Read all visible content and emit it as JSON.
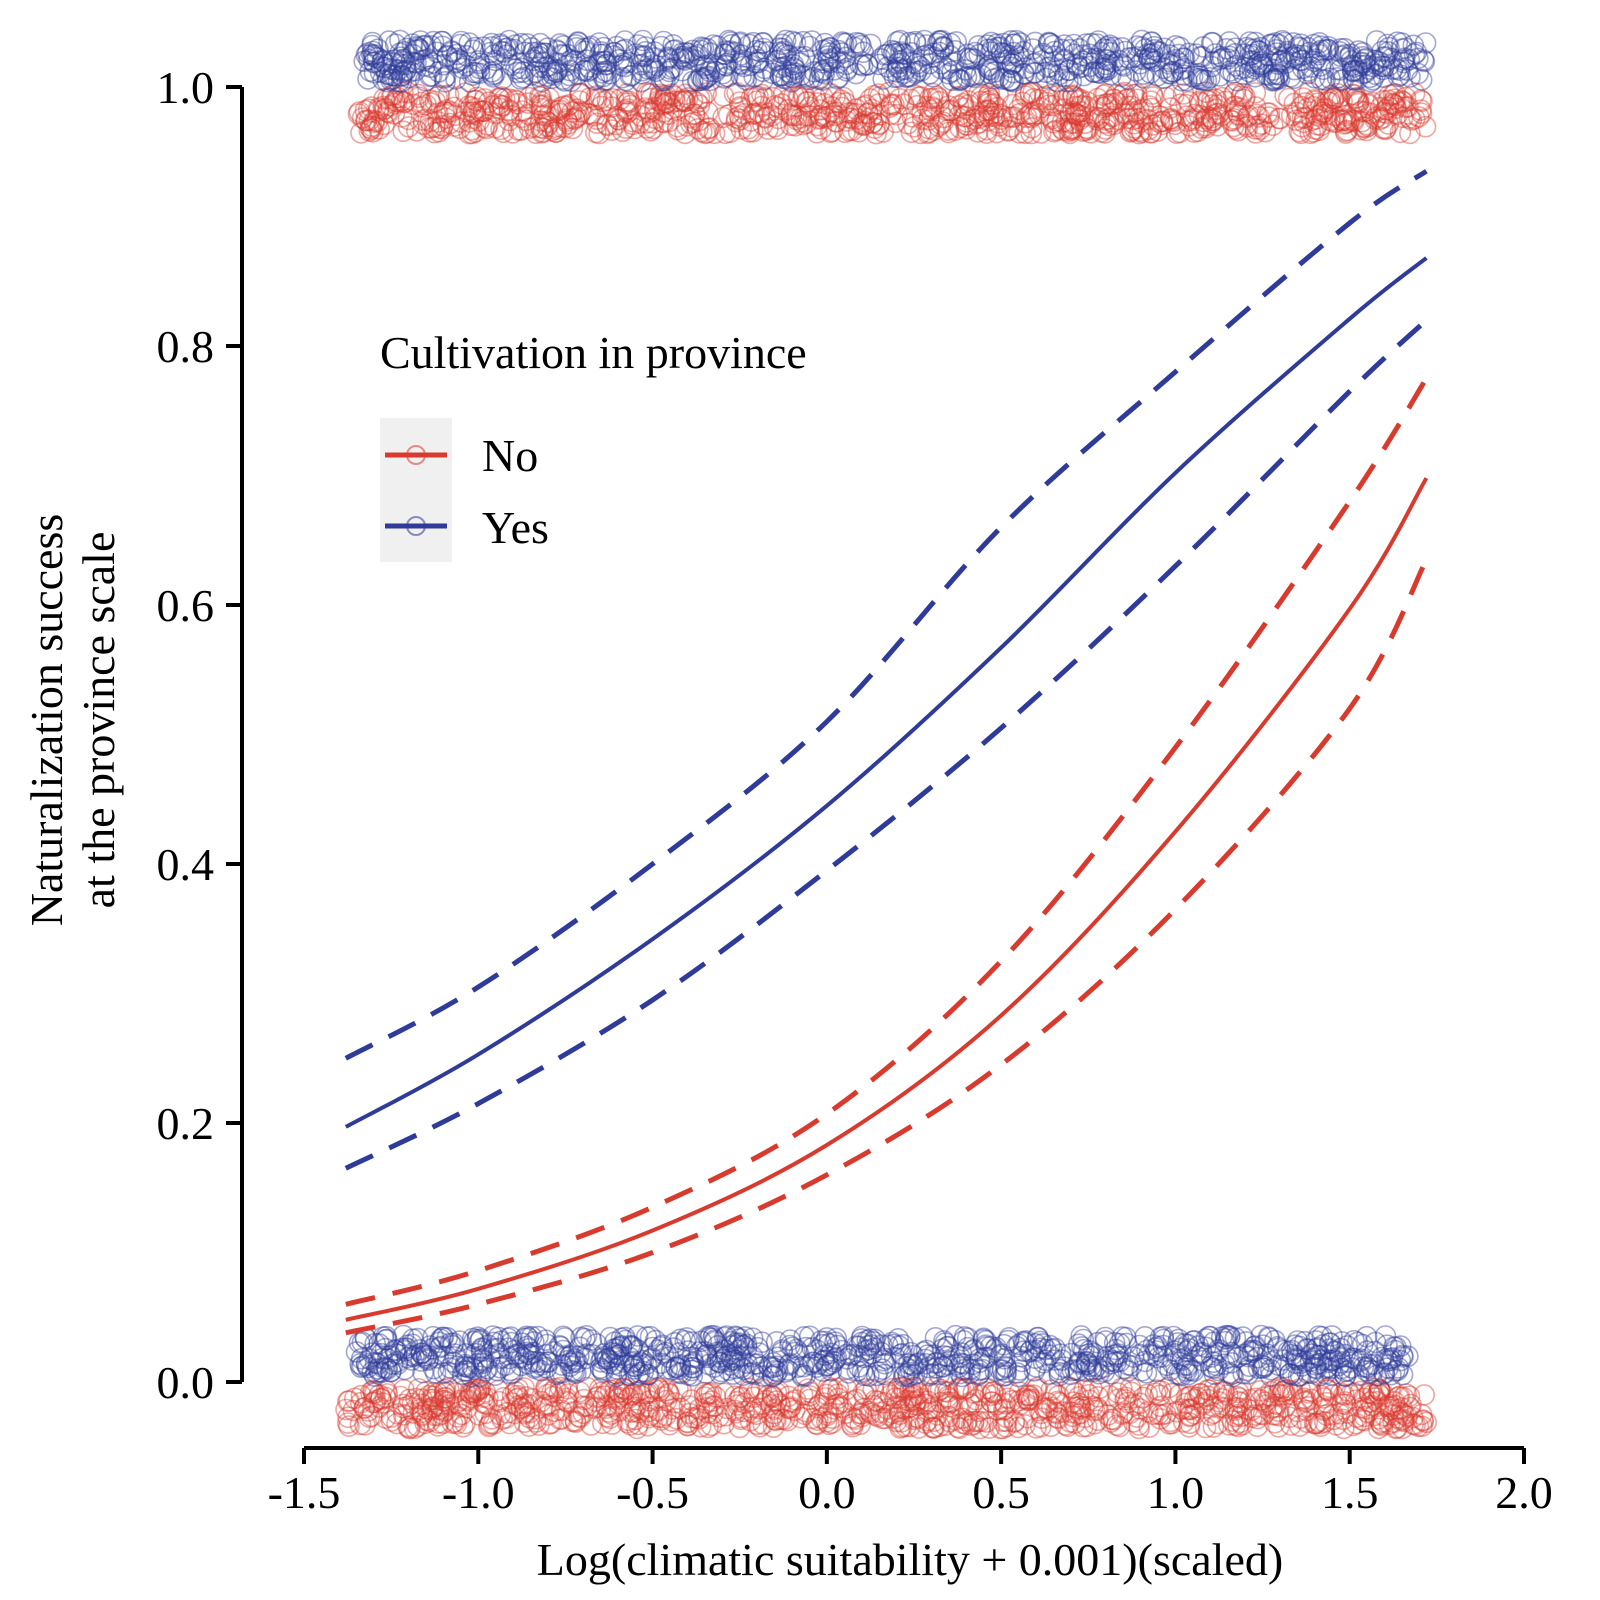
{
  "chart_data": {
    "type": "line",
    "xlabel": "Log(climatic suitability + 0.001)(scaled)",
    "ylabel_lines": [
      "Naturalization success",
      "at the province scale"
    ],
    "xlim": [
      -1.5,
      2.0
    ],
    "ylim": [
      0.0,
      1.0
    ],
    "x_ticks": [
      -1.5,
      -1.0,
      -0.5,
      0.0,
      0.5,
      1.0,
      1.5,
      2.0
    ],
    "x_tick_labels": [
      "-1.5",
      "-1.0",
      "-0.5",
      "0.0",
      "0.5",
      "1.0",
      "1.5",
      "2.0"
    ],
    "y_ticks": [
      0.0,
      0.2,
      0.4,
      0.6,
      0.8,
      1.0
    ],
    "y_tick_labels": [
      "0.0",
      "0.2",
      "0.4",
      "0.6",
      "0.8",
      "1.0"
    ],
    "grid": false,
    "legend": {
      "title": "Cultivation in province",
      "position": "upper-left inside",
      "entries": [
        {
          "label": "No",
          "color": "#d93a2e"
        },
        {
          "label": "Yes",
          "color": "#2e3b98"
        }
      ]
    },
    "x": [
      -1.38,
      -1.0,
      -0.5,
      0.0,
      0.5,
      1.0,
      1.5,
      1.72
    ],
    "series": [
      {
        "name": "No",
        "color": "#d93a2e",
        "fit": [
          0.048,
          0.072,
          0.117,
          0.183,
          0.283,
          0.425,
          0.597,
          0.698
        ],
        "upper": [
          0.06,
          0.086,
          0.135,
          0.207,
          0.325,
          0.49,
          0.68,
          0.775
        ],
        "lower": [
          0.038,
          0.06,
          0.1,
          0.16,
          0.245,
          0.365,
          0.52,
          0.635
        ],
        "points_y1": {
          "level": 0.98,
          "x_range": [
            -1.35,
            1.72
          ]
        },
        "points_y0": {
          "level": -0.02,
          "x_range": [
            -1.38,
            1.72
          ]
        }
      },
      {
        "name": "Yes",
        "color": "#2e3b98",
        "fit": [
          0.197,
          0.253,
          0.342,
          0.445,
          0.567,
          0.702,
          0.821,
          0.868
        ],
        "upper": [
          0.25,
          0.305,
          0.4,
          0.51,
          0.66,
          0.78,
          0.895,
          0.935
        ],
        "lower": [
          0.165,
          0.215,
          0.295,
          0.395,
          0.505,
          0.63,
          0.765,
          0.82
        ],
        "points_y1": {
          "level": 1.02,
          "x_range": [
            -1.33,
            1.72
          ]
        },
        "points_y0": {
          "level": 0.02,
          "x_range": [
            -1.35,
            1.68
          ]
        }
      }
    ]
  }
}
